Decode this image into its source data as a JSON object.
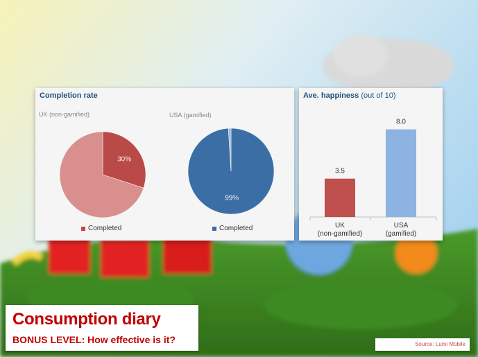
{
  "slide": {
    "title": "Consumption diary",
    "subtitle": "BONUS LEVEL: How effective is it?",
    "source": "Source: Lumi Mobile"
  },
  "colors": {
    "uk_dark": "#b94a48",
    "uk_light": "#d98f8e",
    "usa_dark": "#3b6ea5",
    "usa_light": "#9fb9dc",
    "bar_uk": "#c0504d",
    "bar_usa": "#8db3e2"
  },
  "completion": {
    "panel_title": "Completion rate",
    "uk_label": "UK (non-gamified)",
    "usa_label": "USA (gamified)",
    "uk_legend": "Completed",
    "usa_legend": "Completed"
  },
  "happiness": {
    "title_bold": "Ave. happiness",
    "title_normal": " (out of 10)"
  },
  "chart_data": [
    {
      "type": "pie",
      "title": "UK (non-gamified)",
      "slices": [
        {
          "label": "Completed",
          "value": 30,
          "data_label": "30%"
        },
        {
          "label": "",
          "value": 70,
          "data_label": ""
        }
      ]
    },
    {
      "type": "pie",
      "title": "USA (gamified)",
      "slices": [
        {
          "label": "Completed",
          "value": 99,
          "data_label": "99%"
        },
        {
          "label": "",
          "value": 1,
          "data_label": ""
        }
      ]
    },
    {
      "type": "bar",
      "title": "Ave. happiness (out of 10)",
      "categories": [
        [
          "UK",
          "(non-gamified)"
        ],
        [
          "USA",
          "(gamified)"
        ]
      ],
      "values": [
        3.5,
        8.0
      ],
      "data_labels": [
        "3.5",
        "8.0"
      ],
      "ylim": [
        0,
        10
      ]
    }
  ]
}
